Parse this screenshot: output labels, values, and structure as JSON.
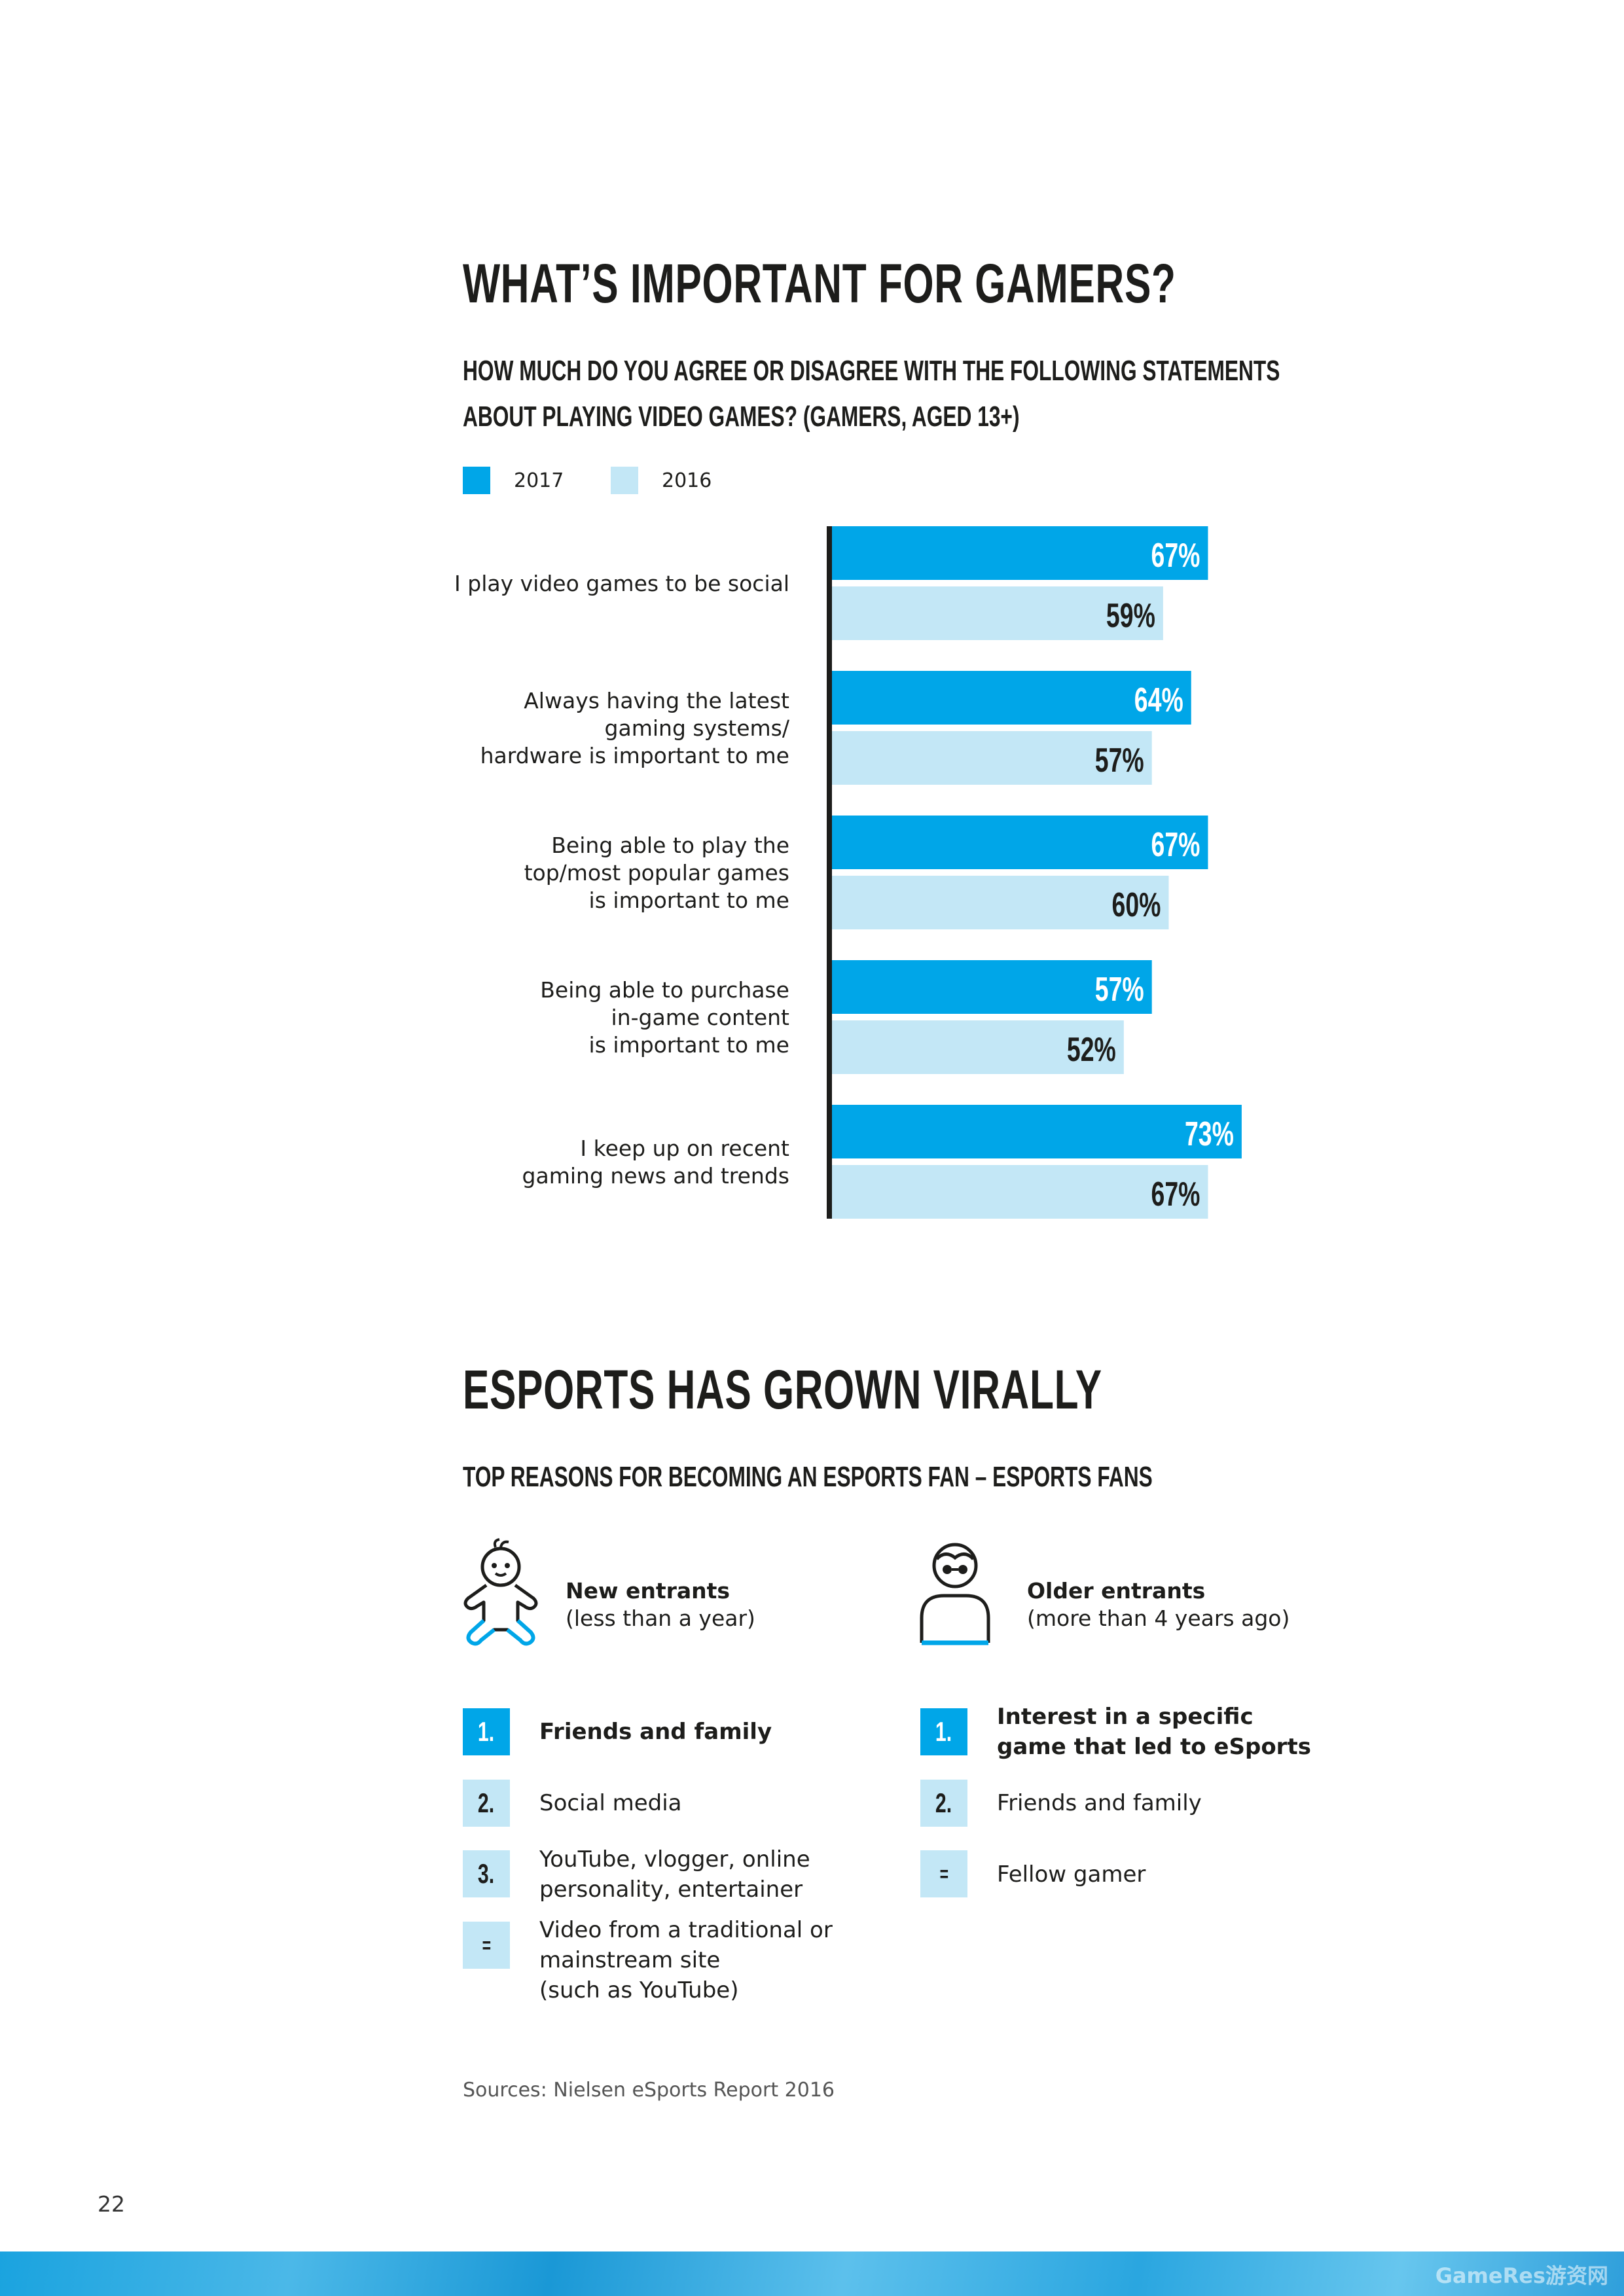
{
  "section1": {
    "title": "WHAT’S IMPORTANT FOR GAMERS?",
    "question_line1": "HOW MUCH DO YOU AGREE OR DISAGREE WITH THE FOLLOWING STATEMENTS",
    "question_line2": "ABOUT PLAYING VIDEO GAMES? (GAMERS, AGED 13+)"
  },
  "legend": [
    {
      "label": "2017",
      "color": "#00a6e8"
    },
    {
      "label": "2016",
      "color": "#c3e7f6"
    }
  ],
  "chart_data": {
    "type": "bar",
    "orientation": "horizontal",
    "categories": [
      [
        "I play video games to be social"
      ],
      [
        "Always having the latest",
        "gaming systems/",
        "hardware is important to me"
      ],
      [
        "Being able to play the",
        "top/most popular games",
        "is important to me"
      ],
      [
        "Being able to purchase",
        "in-game content",
        "is important to me"
      ],
      [
        "I keep up on recent",
        "gaming news and trends"
      ]
    ],
    "series": [
      {
        "name": "2017",
        "color": "#00a6e8",
        "values": [
          67,
          64,
          67,
          57,
          73
        ],
        "labels": [
          "67%",
          "64%",
          "67%",
          "57%",
          "73%"
        ]
      },
      {
        "name": "2016",
        "color": "#c3e7f6",
        "values": [
          59,
          57,
          60,
          52,
          67
        ],
        "labels": [
          "59%",
          "57%",
          "60%",
          "52%",
          "67%"
        ]
      }
    ],
    "xlim": [
      0,
      100
    ],
    "grid": false,
    "legend_position": "top-left"
  },
  "section2": {
    "title": "ESPORTS HAS GROWN VIRALLY",
    "subtitle": "TOP REASONS FOR BECOMING AN ESPORTS FAN – ESPORTS FANS"
  },
  "new_entrants": {
    "icon": "baby-icon",
    "title": "New entrants",
    "subtitle": "(less than a year)",
    "reasons": [
      {
        "rank": "1.",
        "text": "Friends and family"
      },
      {
        "rank": "2.",
        "text": "Social media"
      },
      {
        "rank": "3.",
        "text": "YouTube, vlogger, online\npersonality, entertainer"
      },
      {
        "rank": "=",
        "text": "Video from a traditional or\nmainstream site\n(such as YouTube)"
      }
    ]
  },
  "older_entrants": {
    "icon": "elderly-person-icon",
    "title": "Older entrants",
    "subtitle": "(more than 4 years ago)",
    "reasons": [
      {
        "rank": "1.",
        "text": "Interest in a specific\ngame that led to eSports"
      },
      {
        "rank": "2.",
        "text": "Friends and family"
      },
      {
        "rank": "=",
        "text": "Fellow gamer"
      }
    ]
  },
  "source": "Sources: Nielsen eSports Report 2016",
  "page_number": "22",
  "watermark": "GameRes游资网"
}
